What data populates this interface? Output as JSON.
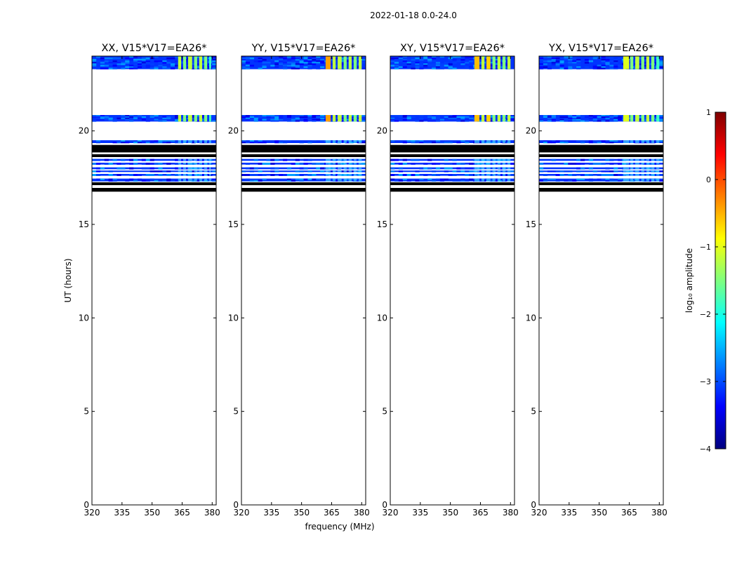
{
  "figure": {
    "suptitle": "2022-01-18 0.0-24.0"
  },
  "chart_data": [
    {
      "type": "heatmap",
      "title": "XX, V15*V17=EA26*",
      "xlabel": "",
      "ylabel": "UT (hours)",
      "xlim": [
        320,
        382
      ],
      "ylim": [
        0,
        24
      ],
      "xticks": [
        "320",
        "335",
        "350",
        "365",
        "380"
      ],
      "yticks": [
        "0",
        "5",
        "10",
        "15",
        "20"
      ],
      "bright_bins": [
        [
          363,
          364.5,
          "#bfff3f"
        ],
        [
          365.5,
          367,
          "#7fff7f"
        ],
        [
          368,
          370,
          "#bfff3f"
        ],
        [
          371,
          372.5,
          "#7fff7f"
        ],
        [
          373.5,
          375,
          "#bfff3f"
        ],
        [
          376,
          377.5,
          "#7fff7f"
        ],
        [
          378.5,
          379.5,
          "#3fffbf"
        ]
      ]
    },
    {
      "type": "heatmap",
      "title": "YY, V15*V17=EA26*",
      "xlabel": "frequency (MHz)",
      "ylabel": "",
      "xlim": [
        320,
        382
      ],
      "ylim": [
        0,
        24
      ],
      "xticks": [
        "320",
        "335",
        "350",
        "365",
        "380"
      ],
      "yticks": [
        "0",
        "5",
        "10",
        "15",
        "20"
      ],
      "bright_bins": [
        [
          362,
          364.5,
          "#ff9f00"
        ],
        [
          365.5,
          367,
          "#bfff3f"
        ],
        [
          368,
          370,
          "#bfff3f"
        ],
        [
          371,
          372.5,
          "#7fff7f"
        ],
        [
          373.5,
          375,
          "#bfff3f"
        ],
        [
          376,
          377.5,
          "#7fff7f"
        ],
        [
          378.5,
          380,
          "#bfff3f"
        ]
      ]
    },
    {
      "type": "heatmap",
      "title": "XY, V15*V17=EA26*",
      "xlabel": "",
      "ylabel": "",
      "xlim": [
        320,
        382
      ],
      "ylim": [
        0,
        24
      ],
      "xticks": [
        "320",
        "335",
        "350",
        "365",
        "380"
      ],
      "yticks": [
        "0",
        "5",
        "10",
        "15",
        "20"
      ],
      "bright_bins": [
        [
          362,
          364.5,
          "#ffbf00"
        ],
        [
          365.5,
          367,
          "#bfff3f"
        ],
        [
          368,
          370,
          "#ffcf00"
        ],
        [
          371,
          372.5,
          "#7fff7f"
        ],
        [
          373.5,
          375,
          "#bfff3f"
        ],
        [
          376,
          377.5,
          "#7fff7f"
        ],
        [
          378.5,
          380,
          "#bfff3f"
        ]
      ]
    },
    {
      "type": "heatmap",
      "title": "YX, V15*V17=EA26*",
      "xlabel": "",
      "ylabel": "",
      "xlim": [
        320,
        382
      ],
      "ylim": [
        0,
        24
      ],
      "xticks": [
        "320",
        "335",
        "350",
        "365",
        "380"
      ],
      "yticks": [
        "0",
        "5",
        "10",
        "15",
        "20"
      ],
      "bright_bins": [
        [
          362,
          365,
          "#dfff1f"
        ],
        [
          365.5,
          367,
          "#7fff7f"
        ],
        [
          368,
          370,
          "#bfff3f"
        ],
        [
          371,
          372.5,
          "#7fff7f"
        ],
        [
          373.5,
          375,
          "#bfff3f"
        ],
        [
          376,
          377.5,
          "#7fff7f"
        ],
        [
          378.5,
          380,
          "#3fffbf"
        ]
      ]
    }
  ],
  "time_bands": {
    "data": [
      [
        23.3,
        24.0
      ],
      [
        20.5,
        20.85
      ],
      [
        19.35,
        19.5
      ],
      [
        18.4,
        18.5
      ],
      [
        18.2,
        18.3
      ],
      [
        17.95,
        18.05
      ],
      [
        17.8,
        17.88
      ],
      [
        17.6,
        17.7
      ],
      [
        17.3,
        17.45
      ]
    ],
    "black": [
      [
        18.85,
        19.25
      ],
      [
        18.6,
        18.75
      ],
      [
        17.1,
        17.25
      ],
      [
        16.75,
        16.95
      ]
    ]
  },
  "colorbar": {
    "label": "log₁₀ amplitude",
    "range": [
      -4,
      1
    ],
    "ticks": [
      "−4",
      "−3",
      "−2",
      "−1",
      "0",
      "1"
    ],
    "cmap": [
      "#00007f",
      "#0000ff",
      "#007fff",
      "#00ffff",
      "#7fff7f",
      "#ffff00",
      "#ff7f00",
      "#ff0000",
      "#7f0000"
    ]
  }
}
